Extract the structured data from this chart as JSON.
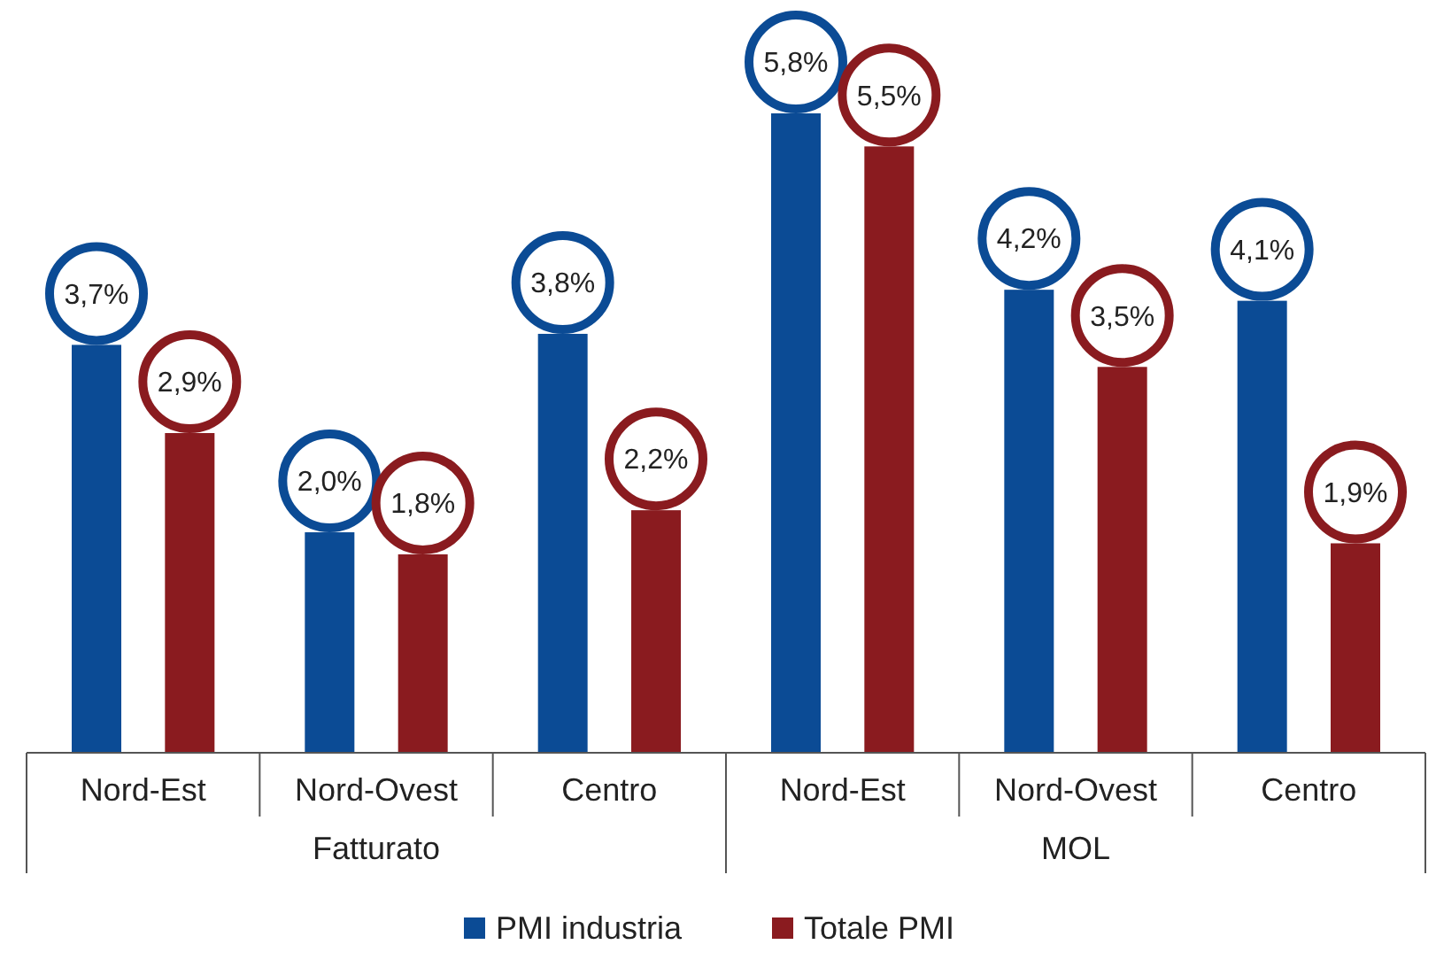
{
  "chart_data": {
    "type": "bar",
    "categories": [
      "Nord-Est",
      "Nord-Ovest",
      "Centro",
      "Nord-Est",
      "Nord-Ovest",
      "Centro"
    ],
    "annotations": [
      "Fatturato",
      "MOL"
    ],
    "series": [
      {
        "name": "PMI industria",
        "color": "#0b4b95",
        "values": [
          3.7,
          2.0,
          3.8,
          5.8,
          4.2,
          4.1
        ],
        "value_labels": [
          "3,7%",
          "2,0%",
          "3,8%",
          "5,8%",
          "4,2%",
          "4,1%"
        ]
      },
      {
        "name": "Totale PMI",
        "color": "#8a1b1f",
        "values": [
          2.9,
          1.8,
          2.2,
          5.5,
          3.5,
          1.9
        ],
        "value_labels": [
          "2,9%",
          "1,8%",
          "2,2%",
          "5,5%",
          "3,5%",
          "1,9%"
        ]
      }
    ],
    "legend": "bottom"
  }
}
